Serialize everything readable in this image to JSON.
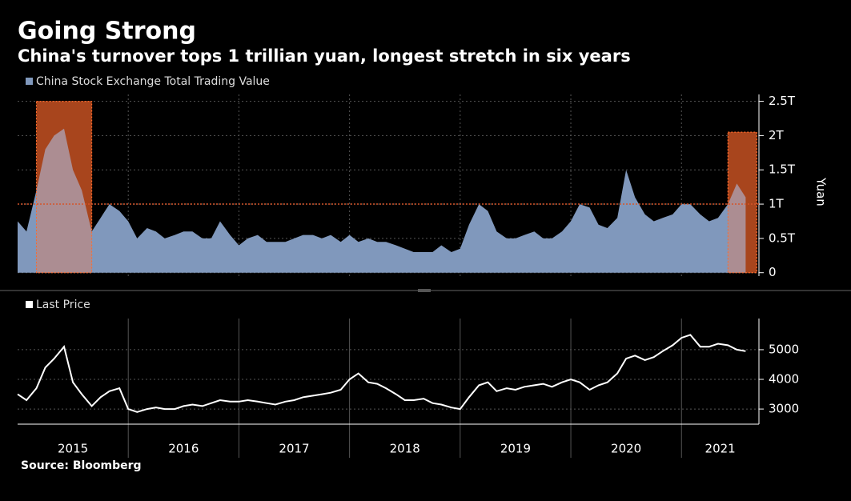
{
  "title": "Going Strong",
  "subtitle": "China's turnover tops 1 trillian yuan, longest stretch in six years",
  "source": "Source: Bloomberg",
  "chart_data": [
    {
      "type": "area",
      "y_label": "Yuan",
      "series": [
        {
          "name": "China Stock Exchange Total Trading Value",
          "color": "#8098bc",
          "values": [
            0.75,
            0.6,
            1.2,
            1.8,
            2.0,
            2.1,
            1.5,
            1.2,
            0.6,
            0.8,
            1.0,
            0.9,
            0.75,
            0.5,
            0.65,
            0.6,
            0.5,
            0.55,
            0.6,
            0.6,
            0.5,
            0.5,
            0.75,
            0.55,
            0.4,
            0.5,
            0.55,
            0.45,
            0.45,
            0.45,
            0.5,
            0.55,
            0.55,
            0.5,
            0.55,
            0.45,
            0.55,
            0.45,
            0.5,
            0.45,
            0.45,
            0.4,
            0.35,
            0.3,
            0.3,
            0.3,
            0.4,
            0.3,
            0.35,
            0.7,
            1.0,
            0.9,
            0.6,
            0.5,
            0.5,
            0.55,
            0.6,
            0.5,
            0.5,
            0.6,
            0.75,
            1.0,
            0.95,
            0.7,
            0.65,
            0.8,
            1.5,
            1.1,
            0.85,
            0.75,
            0.8,
            0.85,
            1.0,
            1.0,
            0.85,
            0.75,
            0.8,
            1.0,
            1.3,
            1.1
          ]
        }
      ],
      "x": [
        2015,
        2015.08,
        2015.17,
        2015.25,
        2015.33,
        2015.42,
        2015.5,
        2015.58,
        2015.67,
        2015.75,
        2015.83,
        2015.92,
        2016,
        2016.08,
        2016.17,
        2016.25,
        2016.33,
        2016.42,
        2016.5,
        2016.58,
        2016.67,
        2016.75,
        2016.83,
        2016.92,
        2017,
        2017.08,
        2017.17,
        2017.25,
        2017.33,
        2017.42,
        2017.5,
        2017.58,
        2017.67,
        2017.75,
        2017.83,
        2017.92,
        2018,
        2018.08,
        2018.17,
        2018.25,
        2018.33,
        2018.42,
        2018.5,
        2018.58,
        2018.67,
        2018.75,
        2018.83,
        2018.92,
        2019,
        2019.08,
        2019.17,
        2019.25,
        2019.33,
        2019.42,
        2019.5,
        2019.58,
        2019.67,
        2019.75,
        2019.83,
        2019.92,
        2020,
        2020.08,
        2020.17,
        2020.25,
        2020.33,
        2020.42,
        2020.5,
        2020.58,
        2020.67,
        2020.75,
        2020.83,
        2020.92,
        2021,
        2021.08,
        2021.17,
        2021.25,
        2021.33,
        2021.42,
        2021.5,
        2021.58
      ],
      "xlim": [
        2015,
        2021.7
      ],
      "xgrid": [
        2016,
        2017,
        2018,
        2019,
        2020,
        2021
      ],
      "ylim": [
        -0.05,
        2.6
      ],
      "yticks": [
        {
          "value": 0,
          "label": "0"
        },
        {
          "value": 0.5,
          "label": "0.5T"
        },
        {
          "value": 1,
          "label": "1T"
        },
        {
          "value": 1.5,
          "label": "1.5T"
        },
        {
          "value": 2,
          "label": "2T"
        },
        {
          "value": 2.5,
          "label": "2.5T"
        }
      ],
      "grid": true,
      "reference_line": 1,
      "highlights": [
        {
          "x": [
            2015.17,
            2015.67
          ],
          "y": [
            0,
            2.5
          ]
        },
        {
          "x": [
            2021.42,
            2021.68
          ],
          "y": [
            0,
            2.05
          ]
        }
      ]
    },
    {
      "type": "line",
      "series": [
        {
          "name": "Last Price",
          "color": "#ffffff",
          "values": [
            3500,
            3300,
            3700,
            4400,
            4700,
            5100,
            3900,
            3500,
            3100,
            3400,
            3600,
            3700,
            3000,
            2900,
            3000,
            3050,
            3000,
            3000,
            3100,
            3150,
            3100,
            3200,
            3300,
            3250,
            3250,
            3300,
            3250,
            3200,
            3150,
            3250,
            3300,
            3400,
            3450,
            3500,
            3550,
            3650,
            4000,
            4200,
            3900,
            3850,
            3700,
            3500,
            3300,
            3300,
            3350,
            3200,
            3150,
            3050,
            3000,
            3400,
            3800,
            3900,
            3600,
            3700,
            3650,
            3750,
            3800,
            3850,
            3750,
            3900,
            4000,
            3900,
            3650,
            3800,
            3900,
            4200,
            4700,
            4800,
            4650,
            4750,
            4950,
            5150,
            5400,
            5500,
            5100,
            5100,
            5200,
            5150,
            5000,
            4950
          ]
        }
      ],
      "x": [
        2015,
        2015.08,
        2015.17,
        2015.25,
        2015.33,
        2015.42,
        2015.5,
        2015.58,
        2015.67,
        2015.75,
        2015.83,
        2015.92,
        2016,
        2016.08,
        2016.17,
        2016.25,
        2016.33,
        2016.42,
        2016.5,
        2016.58,
        2016.67,
        2016.75,
        2016.83,
        2016.92,
        2017,
        2017.08,
        2017.17,
        2017.25,
        2017.33,
        2017.42,
        2017.5,
        2017.58,
        2017.67,
        2017.75,
        2017.83,
        2017.92,
        2018,
        2018.08,
        2018.17,
        2018.25,
        2018.33,
        2018.42,
        2018.5,
        2018.58,
        2018.67,
        2018.75,
        2018.83,
        2018.92,
        2019,
        2019.08,
        2019.17,
        2019.25,
        2019.33,
        2019.42,
        2019.5,
        2019.58,
        2019.67,
        2019.75,
        2019.83,
        2019.92,
        2020,
        2020.08,
        2020.17,
        2020.25,
        2020.33,
        2020.42,
        2020.5,
        2020.58,
        2020.67,
        2020.75,
        2020.83,
        2020.92,
        2021,
        2021.08,
        2021.17,
        2021.25,
        2021.33,
        2021.42,
        2021.5,
        2021.58
      ],
      "xlim": [
        2015,
        2021.7
      ],
      "xgrid": [
        2016,
        2017,
        2018,
        2019,
        2020,
        2021
      ],
      "xticks": [
        {
          "value": 2015.5,
          "label": "2015"
        },
        {
          "value": 2016.5,
          "label": "2016"
        },
        {
          "value": 2017.5,
          "label": "2017"
        },
        {
          "value": 2018.5,
          "label": "2018"
        },
        {
          "value": 2019.5,
          "label": "2019"
        },
        {
          "value": 2020.5,
          "label": "2020"
        },
        {
          "value": 2021.35,
          "label": "2021"
        }
      ],
      "ylim": [
        2490,
        6050
      ],
      "yticks": [
        3000,
        4000,
        5000
      ],
      "grid": true
    }
  ]
}
